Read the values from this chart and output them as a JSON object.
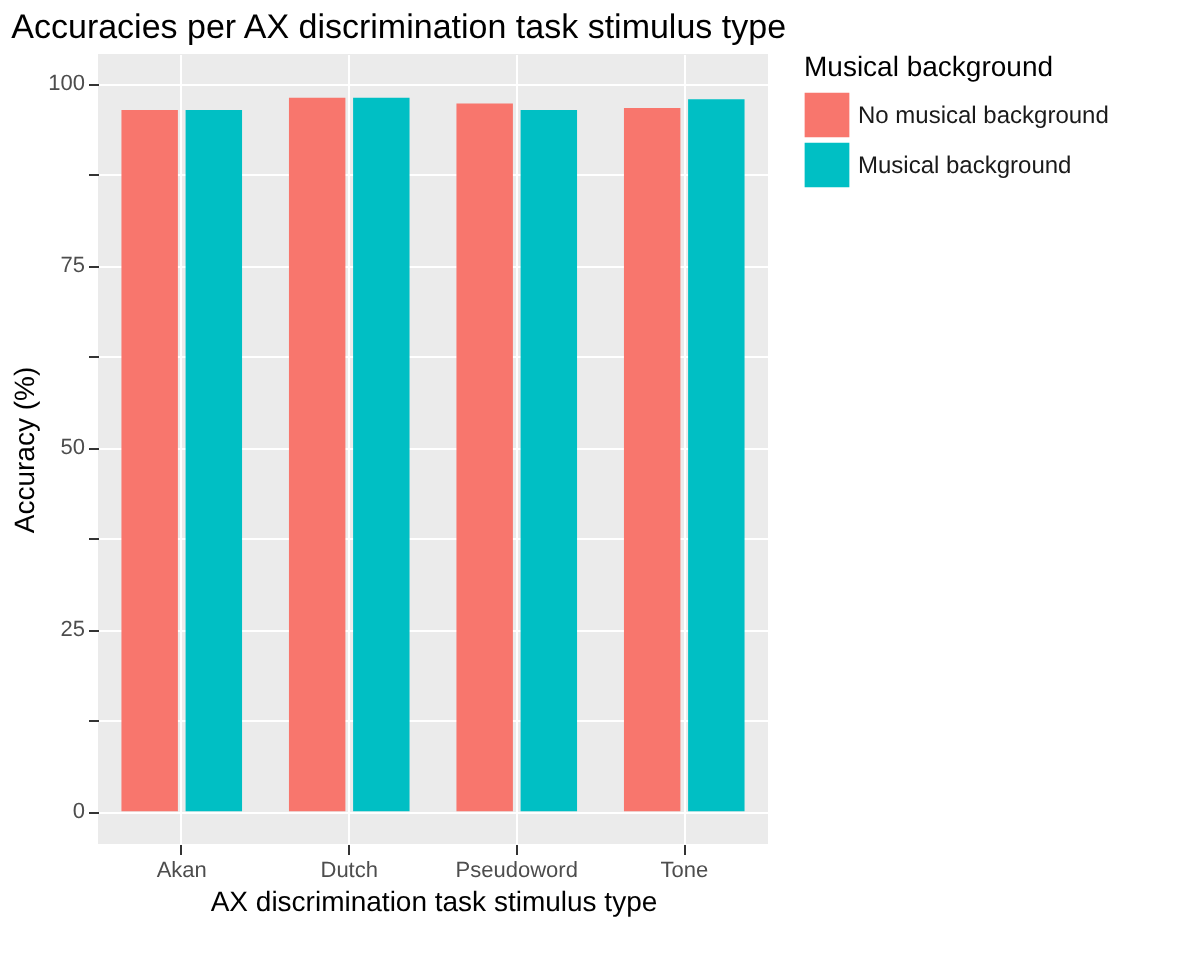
{
  "chart_data": {
    "type": "bar",
    "title": "Accuracies per AX discrimination task stimulus type",
    "xlabel": "AX discrimination task stimulus type",
    "ylabel": "Accuracy (%)",
    "legend_title": "Musical background",
    "legend": "right",
    "grid": true,
    "categories": [
      "Akan",
      "Dutch",
      "Pseudoword",
      "Tone"
    ],
    "series": [
      {
        "name": "No musical background",
        "color": "#f8766d",
        "values": [
          96.3,
          98.0,
          97.2,
          96.6
        ]
      },
      {
        "name": "Musical background",
        "color": "#00bfc4",
        "values": [
          96.3,
          98.0,
          96.3,
          97.8
        ]
      }
    ],
    "ylim": [
      -4.5,
      104
    ],
    "yticks": [
      0,
      {
        "value": 12.5,
        "label": null
      },
      25,
      {
        "value": 37.5,
        "label": null
      },
      50,
      {
        "value": 62.5,
        "label": null
      },
      75,
      {
        "value": 87.5,
        "label": null
      },
      100
    ]
  }
}
